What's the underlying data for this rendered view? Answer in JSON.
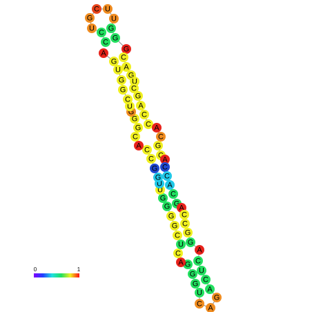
{
  "nodes": [
    {
      "label": "C",
      "color": "#22e060"
    },
    {
      "label": "C",
      "color": "#22e060"
    },
    {
      "label": "U",
      "color": "#f08c20"
    },
    {
      "label": "G",
      "color": "#f08c20"
    },
    {
      "label": "C",
      "color": "#e8441b"
    },
    {
      "label": "U",
      "color": "#f08c20"
    },
    {
      "label": "U",
      "color": "#f08c20"
    },
    {
      "label": "G",
      "color": "#22e060"
    },
    {
      "label": "G",
      "color": "#22e060"
    },
    {
      "label": "G",
      "color": "#e8221b"
    },
    {
      "label": "C",
      "color": "#f0f020"
    },
    {
      "label": "A",
      "color": "#f0f020"
    },
    {
      "label": "G",
      "color": "#f0f020"
    },
    {
      "label": "U",
      "color": "#f0f020"
    },
    {
      "label": "C",
      "color": "#f0f020"
    },
    {
      "label": "G",
      "color": "#f0f020"
    },
    {
      "label": "A",
      "color": "#f0f020"
    },
    {
      "label": "C",
      "color": "#f0f020"
    },
    {
      "label": "C",
      "color": "#f0f020"
    },
    {
      "label": "A",
      "color": "#e8221b"
    },
    {
      "label": "C",
      "color": "#f08c20"
    },
    {
      "label": "G",
      "color": "#f0f020"
    },
    {
      "label": "C",
      "color": "#f0f020"
    },
    {
      "label": "A",
      "color": "#e8221b"
    },
    {
      "label": "C",
      "color": "#2048d0"
    },
    {
      "label": "C",
      "color": "#20c8e8"
    },
    {
      "label": "A",
      "color": "#20c8e8"
    },
    {
      "label": "C",
      "color": "#22e060"
    },
    {
      "label": "G",
      "color": "#22e060"
    },
    {
      "label": "A",
      "color": "#e8221b"
    },
    {
      "label": "C",
      "color": "#f0f020"
    },
    {
      "label": "C",
      "color": "#f0f020"
    },
    {
      "label": "G",
      "color": "#f0f020"
    },
    {
      "label": "G",
      "color": "#22e060"
    },
    {
      "label": "A",
      "color": "#e8221b"
    },
    {
      "label": "C",
      "color": "#22e060"
    },
    {
      "label": "U",
      "color": "#22e060"
    },
    {
      "label": "C",
      "color": "#22e060"
    },
    {
      "label": "A",
      "color": "#22e060"
    },
    {
      "label": "G",
      "color": "#f08c20"
    },
    {
      "label": "A",
      "color": "#f08c20"
    },
    {
      "label": "C",
      "color": "#f08c20"
    },
    {
      "label": "U",
      "color": "#22e060"
    },
    {
      "label": "G",
      "color": "#22e060"
    },
    {
      "label": "G",
      "color": "#22e060"
    },
    {
      "label": "G",
      "color": "#22e060"
    },
    {
      "label": "A",
      "color": "#e8221b"
    },
    {
      "label": "C",
      "color": "#f0f020"
    },
    {
      "label": "U",
      "color": "#22e060"
    },
    {
      "label": "C",
      "color": "#f0f020"
    },
    {
      "label": "G",
      "color": "#f0f020"
    },
    {
      "label": "G",
      "color": "#f0f020"
    },
    {
      "label": "G",
      "color": "#22e060"
    },
    {
      "label": "G",
      "color": "#22e060"
    },
    {
      "label": "U",
      "color": "#f0f020"
    },
    {
      "label": "U",
      "color": "#20c8e8"
    },
    {
      "label": "G",
      "color": "#20c8e8"
    },
    {
      "label": "G",
      "color": "#2048d0"
    },
    {
      "label": "C",
      "color": "#f0f020"
    },
    {
      "label": "C",
      "color": "#f0f020"
    },
    {
      "label": "A",
      "color": "#e8221b"
    },
    {
      "label": "C",
      "color": "#f0f020"
    },
    {
      "label": "G",
      "color": "#f0f020"
    },
    {
      "label": "G",
      "color": "#f0f020"
    },
    {
      "label": "G",
      "color": "#f08c20"
    },
    {
      "label": "U",
      "color": "#f0f020"
    },
    {
      "label": "C",
      "color": "#f0f020"
    },
    {
      "label": "G",
      "color": "#f0f020"
    },
    {
      "label": "G",
      "color": "#f0f020"
    },
    {
      "label": "U",
      "color": "#f0f020"
    },
    {
      "label": "G",
      "color": "#f0f020"
    },
    {
      "label": "A",
      "color": "#e8221b"
    }
  ],
  "legend": {
    "min": "0",
    "max": "1"
  }
}
